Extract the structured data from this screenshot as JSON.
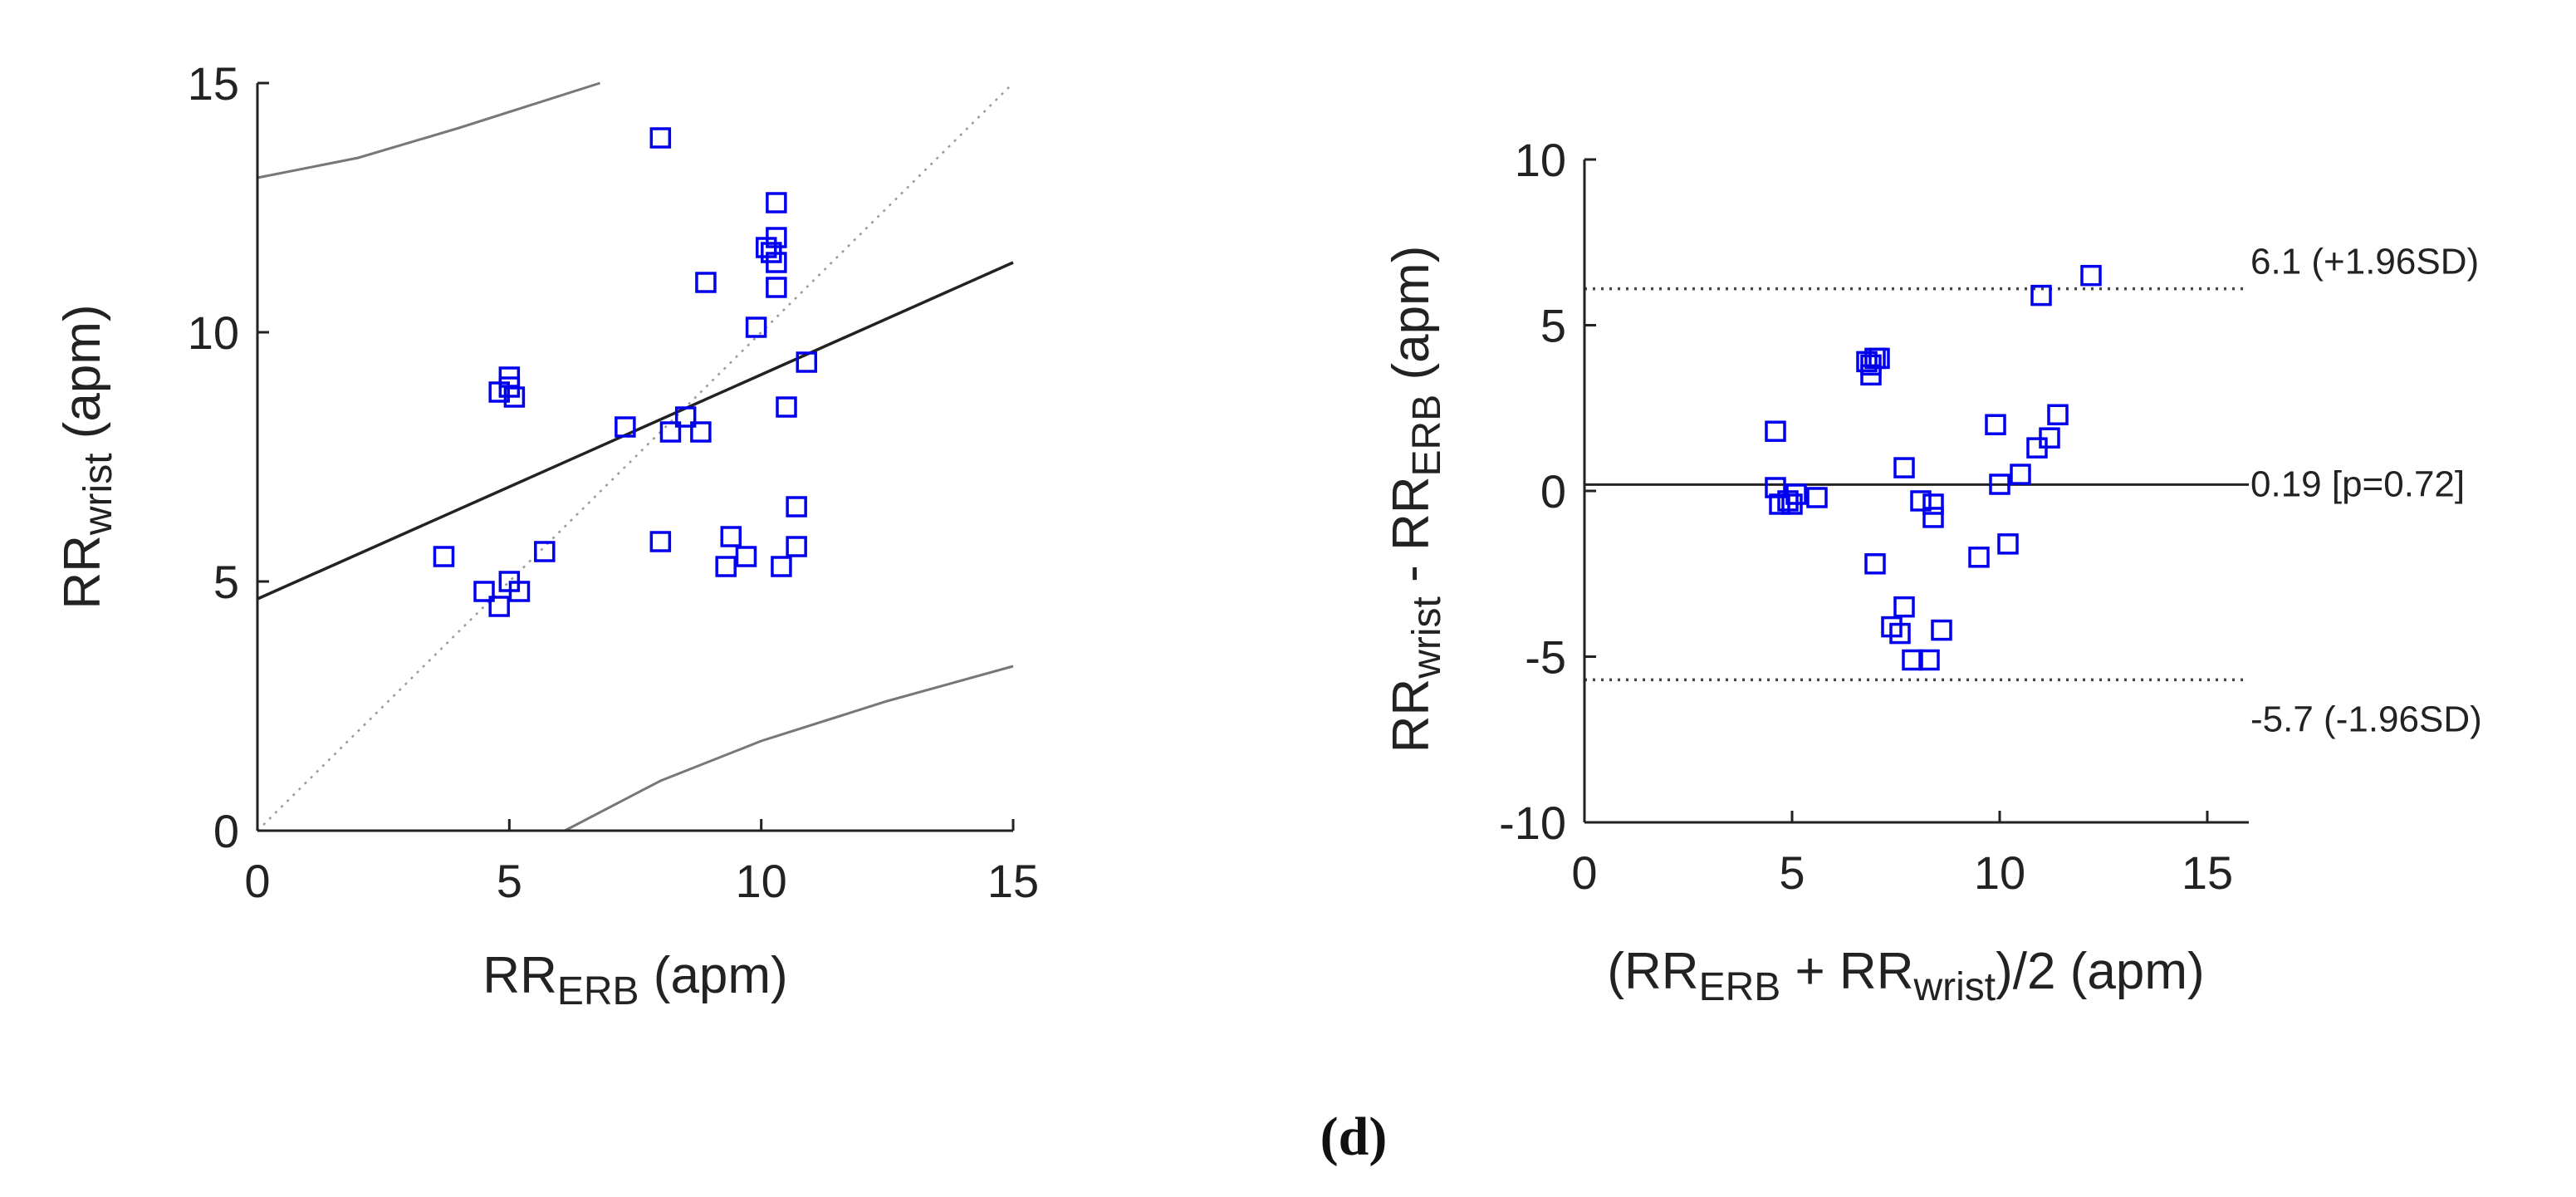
{
  "panel_label": "(d)",
  "chart_data": [
    {
      "type": "scatter",
      "name": "correlation",
      "title": "",
      "xlabel": {
        "main": "RR",
        "sub": "ERB",
        "unit": "(apm)"
      },
      "ylabel": {
        "main": "RR",
        "sub": "wrist",
        "unit": "(apm)"
      },
      "xlim": [
        0,
        15
      ],
      "ylim": [
        0,
        15
      ],
      "xticks": [
        0,
        5,
        10,
        15
      ],
      "yticks": [
        0,
        5,
        10,
        15
      ],
      "marker": "square",
      "marker_color": "#0000ee",
      "grid": false,
      "points": [
        [
          3.7,
          5.5
        ],
        [
          4.5,
          4.8
        ],
        [
          4.8,
          8.8
        ],
        [
          4.8,
          4.5
        ],
        [
          5.0,
          9.1
        ],
        [
          5.0,
          8.9
        ],
        [
          5.0,
          5.0
        ],
        [
          5.1,
          8.7
        ],
        [
          5.2,
          4.8
        ],
        [
          5.7,
          5.6
        ],
        [
          7.3,
          8.1
        ],
        [
          8.0,
          13.9
        ],
        [
          8.0,
          5.8
        ],
        [
          8.2,
          8.0
        ],
        [
          8.5,
          8.3
        ],
        [
          8.8,
          8.0
        ],
        [
          8.9,
          11.0
        ],
        [
          9.3,
          5.3
        ],
        [
          9.4,
          5.9
        ],
        [
          9.7,
          5.5
        ],
        [
          9.9,
          10.1
        ],
        [
          10.1,
          11.7
        ],
        [
          10.2,
          11.6
        ],
        [
          10.3,
          11.9
        ],
        [
          10.3,
          12.6
        ],
        [
          10.3,
          11.4
        ],
        [
          10.3,
          10.9
        ],
        [
          10.4,
          5.3
        ],
        [
          10.5,
          8.5
        ],
        [
          10.7,
          6.5
        ],
        [
          10.7,
          5.7
        ],
        [
          10.9,
          9.4
        ]
      ],
      "regression_line": {
        "intercept": 4.65,
        "slope": 0.45,
        "color": "#222222"
      },
      "identity_line": {
        "color": "#999999",
        "style": "dotted"
      },
      "prediction_bounds": {
        "upper": [
          [
            0,
            13.1
          ],
          [
            2,
            13.5
          ],
          [
            4,
            14.1
          ],
          [
            6.8,
            15.0
          ]
        ],
        "lower": [
          [
            6.1,
            0
          ],
          [
            8,
            1.0
          ],
          [
            10,
            1.8
          ],
          [
            12.5,
            2.6
          ],
          [
            15,
            3.3
          ]
        ],
        "color": "#777777"
      }
    },
    {
      "type": "scatter",
      "name": "bland-altman",
      "title": "",
      "xlabel": {
        "prefix": "(RR",
        "sub1": "ERB",
        "mid": " + RR",
        "sub2": "wrist",
        "suffix": ")/2 (apm)"
      },
      "ylabel": {
        "main1": "RR",
        "sub1": "wrist",
        "mid": " - RR",
        "sub2": "ERB",
        "unit": " (apm)"
      },
      "xlim": [
        0,
        16
      ],
      "ylim": [
        -10,
        10
      ],
      "xticks": [
        0,
        5,
        10,
        15
      ],
      "yticks": [
        -10,
        -5,
        0,
        5,
        10
      ],
      "marker": "square",
      "marker_color": "#0000ee",
      "grid": false,
      "points": [
        [
          4.6,
          1.8
        ],
        [
          4.6,
          0.1
        ],
        [
          4.7,
          -0.4
        ],
        [
          4.9,
          -0.3
        ],
        [
          5.0,
          -0.4
        ],
        [
          5.1,
          -0.1
        ],
        [
          5.6,
          -0.2
        ],
        [
          6.8,
          3.9
        ],
        [
          6.9,
          3.5
        ],
        [
          6.9,
          3.8
        ],
        [
          7.0,
          4.0
        ],
        [
          7.1,
          4.0
        ],
        [
          7.0,
          -2.2
        ],
        [
          7.4,
          -4.1
        ],
        [
          7.6,
          -4.3
        ],
        [
          7.7,
          0.7
        ],
        [
          7.7,
          -3.5
        ],
        [
          7.9,
          -5.1
        ],
        [
          8.1,
          -0.3
        ],
        [
          8.3,
          -5.1
        ],
        [
          8.4,
          -0.4
        ],
        [
          8.4,
          -0.8
        ],
        [
          8.6,
          -4.2
        ],
        [
          9.5,
          -2.0
        ],
        [
          9.9,
          2.0
        ],
        [
          10.0,
          0.2
        ],
        [
          10.2,
          -1.6
        ],
        [
          10.5,
          0.5
        ],
        [
          10.9,
          1.3
        ],
        [
          11.0,
          5.9
        ],
        [
          11.2,
          1.6
        ],
        [
          11.4,
          2.3
        ],
        [
          12.2,
          6.5
        ]
      ],
      "mean_line": {
        "value": 0.19,
        "label": "0.19 [p=0.72]",
        "style": "solid",
        "color": "#222222"
      },
      "upper_loa": {
        "value": 6.1,
        "label": "6.1 (+1.96SD)",
        "style": "dotted",
        "color": "#444444"
      },
      "lower_loa": {
        "value": -5.7,
        "label": "-5.7 (-1.96SD)",
        "style": "dotted",
        "color": "#444444"
      }
    }
  ]
}
